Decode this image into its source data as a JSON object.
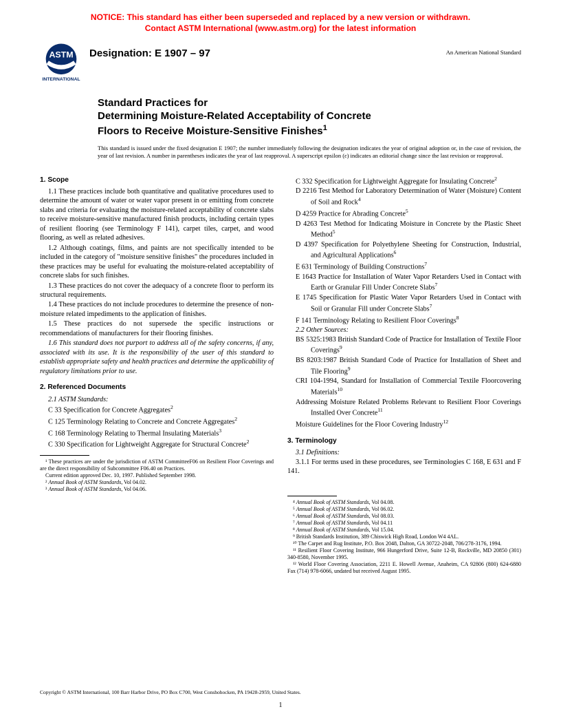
{
  "notice": {
    "line1": "NOTICE: This standard has either been superseded and replaced by a new version or withdrawn.",
    "line2": "Contact ASTM International (www.astm.org) for the latest information",
    "color": "#ff0000"
  },
  "header": {
    "designation": "Designation: E 1907 – 97",
    "ans": "An American National Standard",
    "logo_label": "ASTM INTERNATIONAL"
  },
  "title": {
    "line1": "Standard Practices for",
    "line2": "Determining Moisture-Related Acceptability of Concrete",
    "line3": "Floors to Receive Moisture-Sensitive Finishes",
    "sup": "1"
  },
  "issue_note": "This standard is issued under the fixed designation E 1907; the number immediately following the designation indicates the year of original adoption or, in the case of revision, the year of last revision. A number in parentheses indicates the year of last reapproval. A superscript epsilon (ε) indicates an editorial change since the last revision or reapproval.",
  "sections": {
    "scope_head": "1. Scope",
    "scope": [
      "1.1 These practices include both quantitative and qualitative procedures used to determine the amount of water or water vapor present in or emitting from concrete slabs and criteria for evaluating the moisture-related acceptability of concrete slabs to receive moisture-sensitive manufactured finish products, including certain types of resilient flooring (see Terminology F 141), carpet tiles, carpet, and wood flooring, as well as related adhesives.",
      "1.2 Although coatings, films, and paints are not specifically intended to be included in the category of \"moisture sensitive finishes\" the procedures included in these practices may be useful for evaluating the moisture-related acceptability of concrete slabs for such finishes.",
      "1.3 These practices do not cover the adequacy of a concrete floor to perform its structural requirements.",
      "1.4 These practices do not include procedures to determine the presence of non-moisture related impediments to the application of finishes.",
      "1.5 These practices do not supersede the specific instructions or recommendations of manufacturers for their flooring finishes."
    ],
    "scope_italic": "1.6 This standard does not purport to address all of the safety concerns, if any, associated with its use. It is the responsibility of the user of this standard to establish appropriate safety and health practices and determine the applicability of regulatory limitations prior to use.",
    "ref_head": "2. Referenced Documents",
    "ref_sub1": "2.1 ASTM Standards:",
    "astm_refs_left": [
      {
        "t": "C 33  Specification for Concrete Aggregates",
        "s": "2"
      },
      {
        "t": "C 125  Terminology Relating to Concrete and Concrete Aggregates",
        "s": "2"
      },
      {
        "t": "C 168  Terminology Relating to Thermal Insulating Materials",
        "s": "3"
      },
      {
        "t": "C 330  Specification for Lightweight Aggregate for Structural Concrete",
        "s": "2"
      }
    ],
    "astm_refs_right": [
      {
        "t": "C 332  Specification for Lightweight Aggregate for Insulating Concrete",
        "s": "2"
      },
      {
        "t": "D 2216  Test Method for Laboratory Determination of Water (Moisture) Content of Soil and Rock",
        "s": "4"
      },
      {
        "t": "D 4259  Practice for Abrading Concrete",
        "s": "5"
      },
      {
        "t": "D 4263  Test Method for Indicating Moisture in Concrete by the Plastic Sheet Method",
        "s": "5"
      },
      {
        "t": "D 4397  Specification for Polyethylene Sheeting for Construction, Industrial, and Agricultural Applications",
        "s": "6"
      },
      {
        "t": "E 631  Terminology of Building Constructions",
        "s": "7"
      },
      {
        "t": "E 1643  Practice for Installation of Water Vapor Retarders Used in Contact with Earth or Granular Fill Under Concrete Slabs",
        "s": "7"
      },
      {
        "t": "E 1745  Specification for Plastic Water Vapor Retarders Used in Contact with Soil or Granular Fill under Concrete Slabs",
        "s": "7"
      },
      {
        "t": "F 141  Terminology Relating to Resilient Floor Coverings",
        "s": "8"
      }
    ],
    "ref_sub2": "2.2 Other Sources:",
    "other_refs": [
      {
        "t": "BS 5325:1983  British Standard Code of Practice for Installation of Textile Floor Coverings",
        "s": "9"
      },
      {
        "t": "BS 8203:1987  British Standard Code of Practice for Installation of Sheet and Tile Flooring",
        "s": "9"
      },
      {
        "t": "CRI 104-1994, Standard for Installation of Commercial Textile Floorcovering Materials",
        "s": "10"
      },
      {
        "t": "Addressing Moisture Related Problems Relevant to Resilient Floor Coverings Installed Over Concrete",
        "s": "11"
      },
      {
        "t": "Moisture Guidelines for the Floor Covering Industry",
        "s": "12"
      }
    ],
    "term_head": "3. Terminology",
    "term_sub": "3.1 Definitions:",
    "term_para": "3.1.1 For terms used in these procedures, see Terminologies C 168, E 631 and F 141."
  },
  "footnotes_left": [
    "¹ These practices are under the jurisdiction of ASTM CommitteeF06 on Resilient Floor Coverings and are the direct responsibility of Subcommittee F06.40 on Practices.",
    "Current edition approved Dec. 10, 1997. Published September 1998.",
    "² Annual Book of ASTM Standards, Vol 04.02.",
    "³ Annual Book of ASTM Standards, Vol 04.06."
  ],
  "footnotes_right": [
    "⁴ Annual Book of ASTM Standards, Vol 04.08.",
    "⁵ Annual Book of ASTM Standards, Vol 06.02.",
    "⁶ Annual Book of ASTM Standards, Vol 08.03.",
    "⁷ Annual Book of ASTM Standards, Vol 04.11",
    "⁸ Annual Book of ASTM Standards, Vol 15.04.",
    "⁹ British Standards Institution, 389 Chiswick High Road, London W4 4AL.",
    "¹⁰ The Carpet and Rug Institute, P.O. Box 2048, Dalton, GA 30722-2048, 706/278-3176, 1994.",
    "¹¹ Resilient Floor Covering Institute, 966 Hungerford Drive, Suite 12-B, Rockville, MD 20850 (301) 340-8580, November 1995.",
    "¹² World Floor Covering Association, 2211 E. Howell Avenue, Anaheim, CA 92806 (800) 624-6880 Fax (714) 978-6066, undated but received August 1995."
  ],
  "copyright": "Copyright © ASTM International, 100 Barr Harbor Drive, PO Box C700, West Conshohocken, PA 19428-2959, United States.",
  "page_number": "1"
}
